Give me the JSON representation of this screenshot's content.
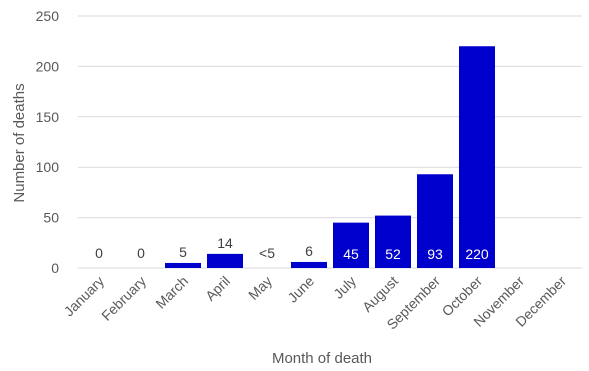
{
  "chart_data": {
    "type": "bar",
    "xlabel": "Month of death",
    "ylabel": "Number of deaths",
    "ylim": [
      0,
      250
    ],
    "yticks": [
      0,
      50,
      100,
      150,
      200,
      250
    ],
    "grid": "horizontal",
    "legend": "none",
    "bar_color": "#0000CC",
    "gridline_color": "#D9D9D9",
    "categories": [
      "January",
      "February",
      "March",
      "April",
      "May",
      "June",
      "July",
      "August",
      "September",
      "October",
      "November",
      "December"
    ],
    "values": [
      0,
      0,
      5,
      14,
      null,
      6,
      45,
      52,
      93,
      220,
      null,
      null
    ],
    "data_labels": [
      "0",
      "0",
      "5",
      "14",
      "<5",
      "6",
      "45",
      "52",
      "93",
      "220",
      "",
      ""
    ]
  }
}
